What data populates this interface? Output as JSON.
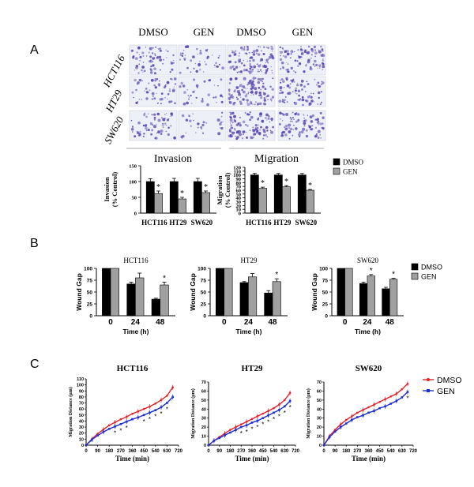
{
  "panels": {
    "A": {
      "letter": "A",
      "col_headers": [
        "DMSO",
        "GEN",
        "DMSO",
        "GEN"
      ],
      "row_labels": [
        "HCT116",
        "HT29",
        "SW620"
      ],
      "section_titles": [
        "Invasion",
        "Migration"
      ]
    },
    "B": {
      "letter": "B"
    },
    "C": {
      "letter": "C"
    }
  },
  "micrograph_color": "#5a46b4",
  "chart_data": [
    {
      "id": "A-invasion",
      "type": "bar",
      "title": "Invasion",
      "ylabel": "Invasion\n(% Control)",
      "categories": [
        "HCT116",
        "HT29",
        "SW620"
      ],
      "ylim": [
        0,
        150
      ],
      "yticks": [
        0,
        50,
        100,
        150
      ],
      "series": [
        {
          "name": "DMSO",
          "color": "#000000",
          "values": [
            100,
            100,
            100
          ],
          "errors": [
            9,
            10,
            10
          ]
        },
        {
          "name": "GEN",
          "color": "#a0a0a0",
          "values": [
            62,
            45,
            65
          ],
          "errors": [
            8,
            5,
            5
          ]
        }
      ],
      "significant": [
        "*",
        "*",
        "*"
      ]
    },
    {
      "id": "A-migration",
      "type": "bar",
      "title": "Migration",
      "ylabel": "Migration\n(% Control)",
      "categories": [
        "HCT116",
        "HT29",
        "SW620"
      ],
      "ylim": [
        0,
        120
      ],
      "yticks": [
        0,
        10,
        20,
        30,
        40,
        50,
        60,
        70,
        80,
        90,
        100,
        110,
        120
      ],
      "series": [
        {
          "name": "DMSO",
          "color": "#000000",
          "values": [
            100,
            100,
            100
          ],
          "errors": [
            4,
            4,
            4
          ]
        },
        {
          "name": "GEN",
          "color": "#a0a0a0",
          "values": [
            65,
            69,
            60
          ],
          "errors": [
            3,
            3,
            2
          ]
        }
      ],
      "significant": [
        "*",
        "*",
        "*"
      ],
      "legend": [
        "DMSO",
        "GEN"
      ]
    },
    {
      "id": "B-HCT116",
      "type": "bar",
      "title": "HCT116",
      "xlabel": "Time (h)",
      "ylabel": "Wound Gap",
      "categories": [
        "0",
        "24",
        "48"
      ],
      "ylim": [
        0,
        100
      ],
      "yticks": [
        0,
        25,
        50,
        75,
        100
      ],
      "series": [
        {
          "name": "DMSO",
          "color": "#000000",
          "values": [
            100,
            67,
            35
          ],
          "errors": [
            0,
            4,
            2
          ]
        },
        {
          "name": "GEN",
          "color": "#a0a0a0",
          "values": [
            100,
            80,
            65
          ],
          "errors": [
            0,
            10,
            6
          ]
        }
      ],
      "significant": [
        "",
        "",
        "*"
      ]
    },
    {
      "id": "B-HT29",
      "type": "bar",
      "title": "HT29",
      "xlabel": "Time (h)",
      "ylabel": "Wound Gap",
      "categories": [
        "0",
        "24",
        "48"
      ],
      "ylim": [
        0,
        100
      ],
      "yticks": [
        0,
        25,
        50,
        75,
        100
      ],
      "series": [
        {
          "name": "DMSO",
          "color": "#000000",
          "values": [
            100,
            70,
            48
          ],
          "errors": [
            0,
            2,
            5
          ]
        },
        {
          "name": "GEN",
          "color": "#a0a0a0",
          "values": [
            100,
            82,
            72
          ],
          "errors": [
            0,
            7,
            6
          ]
        }
      ],
      "significant": [
        "",
        "",
        "*"
      ]
    },
    {
      "id": "B-SW620",
      "type": "bar",
      "title": "SW620",
      "xlabel": "Time (h)",
      "ylabel": "Wound Gap",
      "categories": [
        "0",
        "24",
        "48"
      ],
      "ylim": [
        0,
        100
      ],
      "yticks": [
        0,
        25,
        50,
        75,
        100
      ],
      "series": [
        {
          "name": "DMSO",
          "color": "#000000",
          "values": [
            100,
            68,
            57
          ],
          "errors": [
            0,
            3,
            3
          ]
        },
        {
          "name": "GEN",
          "color": "#a0a0a0",
          "values": [
            100,
            84,
            77
          ],
          "errors": [
            0,
            3,
            2
          ]
        }
      ],
      "significant": [
        "",
        "*",
        "*"
      ],
      "legend": [
        "DMSO",
        "GEN"
      ]
    },
    {
      "id": "C-HCT116",
      "type": "line",
      "title": "HCT116",
      "xlabel": "Time (min)",
      "ylabel": "Migration Distance (μm)",
      "xlim": [
        0,
        720
      ],
      "xticks": [
        0,
        90,
        180,
        270,
        360,
        450,
        540,
        630,
        720
      ],
      "ylim": [
        0,
        110
      ],
      "yticks": [
        0,
        10,
        20,
        30,
        40,
        50,
        60,
        70,
        80,
        90,
        100,
        110
      ],
      "series": [
        {
          "name": "DMSO",
          "color": "#e8202a",
          "marker": "circle",
          "x": [
            0,
            45,
            90,
            135,
            180,
            225,
            270,
            315,
            360,
            405,
            450,
            495,
            540,
            585,
            630,
            675
          ],
          "y": [
            0,
            10,
            19,
            26,
            33,
            38,
            43,
            47,
            52,
            56,
            60,
            64,
            69,
            75,
            82,
            96
          ]
        },
        {
          "name": "GEN",
          "color": "#1e2fd6",
          "marker": "square",
          "x": [
            0,
            45,
            90,
            135,
            180,
            225,
            270,
            315,
            360,
            405,
            450,
            495,
            540,
            585,
            630,
            675
          ],
          "y": [
            0,
            9,
            16,
            22,
            27,
            31,
            35,
            39,
            43,
            46,
            50,
            54,
            58,
            63,
            70,
            80
          ]
        }
      ],
      "significant_x": [
        225,
        270,
        315,
        450,
        495,
        540,
        585,
        630
      ],
      "legend": [
        "DMSO",
        "GEN"
      ]
    },
    {
      "id": "C-HT29",
      "type": "line",
      "title": "HT29",
      "xlabel": "Time (min)",
      "ylabel": "Migration Distance (μm)",
      "xlim": [
        0,
        720
      ],
      "xticks": [
        0,
        90,
        180,
        270,
        360,
        450,
        540,
        630,
        720
      ],
      "ylim": [
        0,
        70
      ],
      "yticks": [
        0,
        10,
        20,
        30,
        40,
        50,
        60,
        70
      ],
      "series": [
        {
          "name": "DMSO",
          "color": "#e8202a",
          "marker": "circle",
          "x": [
            0,
            45,
            90,
            135,
            180,
            225,
            270,
            315,
            360,
            405,
            450,
            495,
            540,
            585,
            630,
            675
          ],
          "y": [
            0,
            5,
            9,
            13,
            17,
            20,
            23,
            26,
            29,
            32,
            35,
            38,
            41,
            45,
            50,
            58
          ]
        },
        {
          "name": "GEN",
          "color": "#1e2fd6",
          "marker": "square",
          "x": [
            0,
            45,
            90,
            135,
            180,
            225,
            270,
            315,
            360,
            405,
            450,
            495,
            540,
            585,
            630,
            675
          ],
          "y": [
            0,
            5,
            8,
            11,
            14,
            17,
            20,
            22,
            25,
            27,
            30,
            33,
            36,
            39,
            43,
            49
          ]
        }
      ],
      "significant_x": [
        270,
        315,
        360,
        405,
        450,
        495,
        540,
        585,
        630,
        675
      ]
    },
    {
      "id": "C-SW620",
      "type": "line",
      "title": "SW620",
      "xlabel": "Time (min)",
      "ylabel": "Migration Distance (μm)",
      "xlim": [
        0,
        720
      ],
      "xticks": [
        0,
        90,
        180,
        270,
        360,
        450,
        540,
        630,
        720
      ],
      "ylim": [
        0,
        70
      ],
      "yticks": [
        0,
        10,
        20,
        30,
        40,
        50,
        60,
        70
      ],
      "series": [
        {
          "name": "DMSO",
          "color": "#e8202a",
          "marker": "circle",
          "x": [
            0,
            45,
            90,
            135,
            180,
            225,
            270,
            315,
            360,
            405,
            450,
            495,
            540,
            585,
            630,
            675
          ],
          "y": [
            0,
            10,
            17,
            23,
            28,
            32,
            36,
            39,
            42,
            45,
            48,
            51,
            54,
            57,
            62,
            68
          ]
        },
        {
          "name": "GEN",
          "color": "#1e2fd6",
          "marker": "square",
          "x": [
            0,
            45,
            90,
            135,
            180,
            225,
            270,
            315,
            360,
            405,
            450,
            495,
            540,
            585,
            630,
            675
          ],
          "y": [
            0,
            9,
            15,
            20,
            24,
            28,
            31,
            33,
            36,
            38,
            41,
            43,
            46,
            49,
            53,
            59
          ]
        }
      ],
      "significant_x": [
        675
      ]
    }
  ]
}
